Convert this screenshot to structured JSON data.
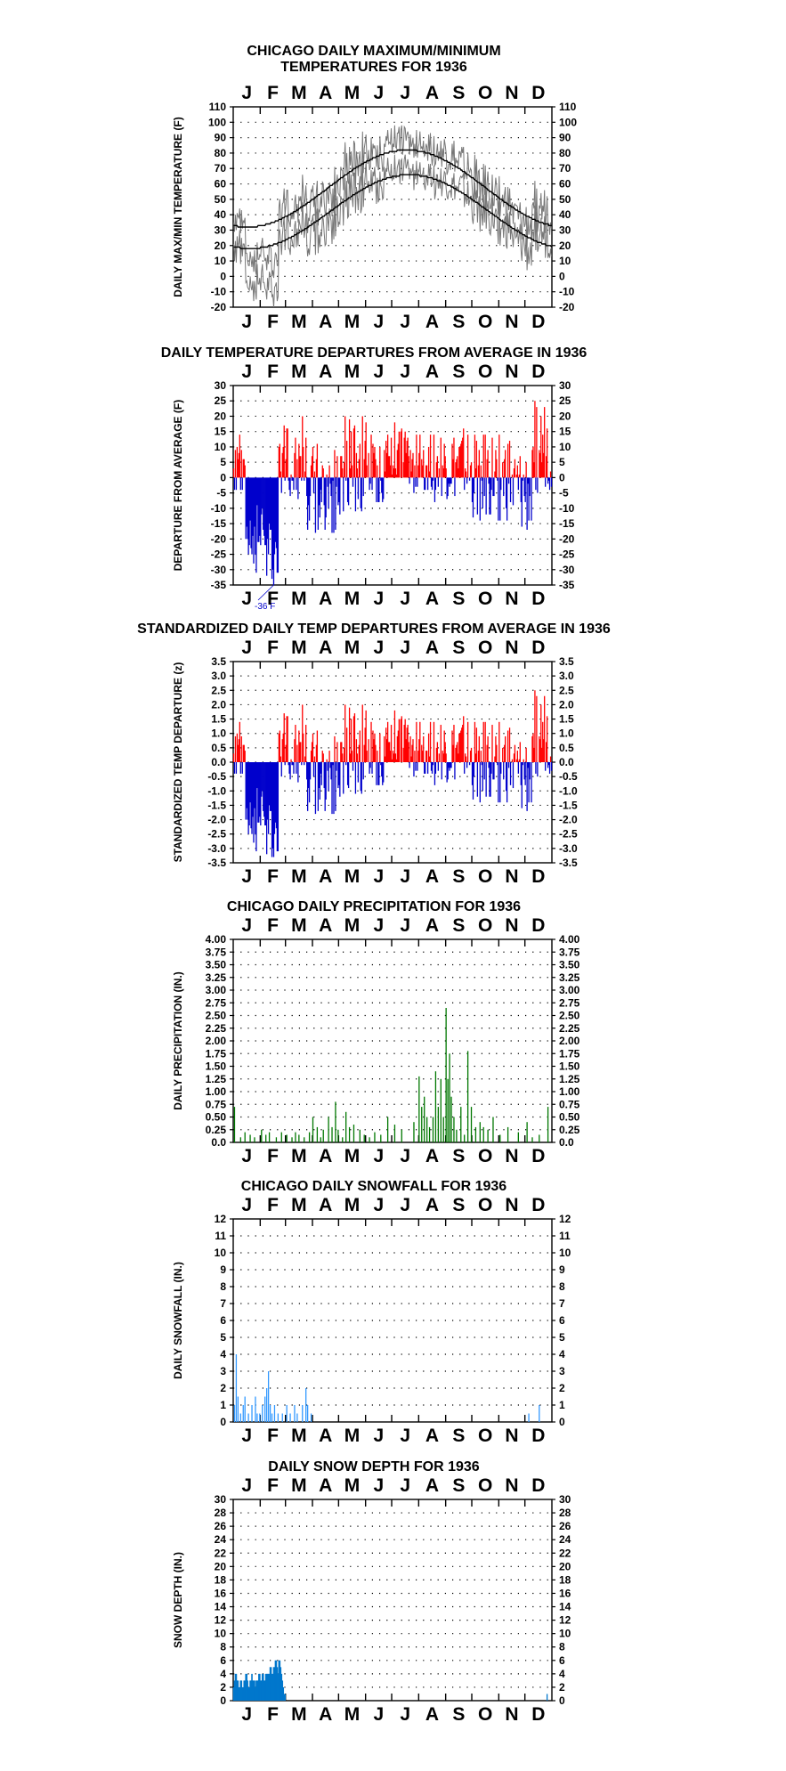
{
  "months": [
    "J",
    "F",
    "M",
    "A",
    "M",
    "J",
    "J",
    "A",
    "S",
    "O",
    "N",
    "D"
  ],
  "colors": {
    "frame": "#000000",
    "grid": "#000000",
    "temp_series": "#777777",
    "normal_lines": "#000000",
    "above_average": "#ff0000",
    "below_average": "#0000cc",
    "precipitation": "#007700",
    "snowfall": "#3399ff",
    "snow_depth": "#0077cc"
  },
  "chart_data": [
    {
      "id": "temp",
      "type": "line",
      "title": "CHICAGO DAILY MAXIMUM/MINIMUM",
      "subtitle": "TEMPERATURES FOR 1936",
      "ylabel": "DAILY MAX/MIN TEMPERATURE (F)",
      "ylim": [
        -20,
        110
      ],
      "yticks": [
        "110",
        "100",
        "90",
        "80",
        "70",
        "60",
        "50",
        "40",
        "30",
        "20",
        "10",
        "0",
        "-10",
        "-20"
      ],
      "grid": true,
      "x_units": "day of year 1936",
      "series": []
    },
    {
      "id": "departure",
      "type": "bar",
      "title": "DAILY TEMPERATURE DEPARTURES FROM AVERAGE IN 1936",
      "ylabel": "DEPARTURE FROM AVERAGE (F)",
      "ylim": [
        -35,
        30
      ],
      "yticks": [
        "30",
        "25",
        "20",
        "15",
        "10",
        "5",
        "0",
        "-5",
        "-10",
        "-15",
        "-20",
        "-25",
        "-30",
        "-35"
      ],
      "annotation": "-36 F",
      "grid": true,
      "x_units": "day of year 1936",
      "values": []
    },
    {
      "id": "standardized",
      "type": "bar",
      "title": "STANDARDIZED DAILY TEMP DEPARTURES FROM AVERAGE IN 1936",
      "ylabel": "STANDARDIZED TEMP DEPARTURE (z)",
      "ylim": [
        -3.5,
        3.5
      ],
      "yticks_left": [
        "3.5",
        "3.0",
        "2.5",
        "2.0",
        "1.5",
        "1.0",
        "0.5",
        "0.0",
        "-0.5",
        "-1.0",
        "-1.5",
        "-2.0",
        "-2.5",
        "-3.0",
        "-3.5"
      ],
      "yticks_right": [
        "3.5",
        "3.0",
        "2.5",
        "2.0",
        "1.5",
        "1.0",
        "0.5",
        "0.0",
        "-0.5",
        "-1.0",
        "-1.5",
        "-2.0",
        "-2.5",
        "-3.0",
        "-3.5"
      ],
      "grid": true,
      "x_units": "day of year 1936",
      "values": []
    },
    {
      "id": "precip",
      "type": "bar",
      "title": "CHICAGO DAILY PRECIPITATION FOR 1936",
      "ylabel": "DAILY PRECIPITATION (IN.)",
      "ylim": [
        0,
        4
      ],
      "yticks": [
        "4.00",
        "3.75",
        "3.50",
        "3.25",
        "3.00",
        "2.75",
        "2.50",
        "2.25",
        "2.00",
        "1.75",
        "1.50",
        "1.25",
        "1.00",
        "0.75",
        "0.50",
        "0.25",
        "0.0"
      ],
      "grid": true,
      "x_units": "day of year 1936",
      "points": [
        [
          2,
          0.7
        ],
        [
          9,
          0.1
        ],
        [
          14,
          0.2
        ],
        [
          20,
          0.15
        ],
        [
          25,
          0.1
        ],
        [
          33,
          0.25
        ],
        [
          38,
          0.15
        ],
        [
          42,
          0.2
        ],
        [
          50,
          0.1
        ],
        [
          56,
          0.2
        ],
        [
          62,
          0.15
        ],
        [
          68,
          0.1
        ],
        [
          72,
          0.2
        ],
        [
          76,
          0.15
        ],
        [
          82,
          0.1
        ],
        [
          88,
          0.2
        ],
        [
          92,
          0.5
        ],
        [
          97,
          0.3
        ],
        [
          101,
          0.1
        ],
        [
          104,
          0.25
        ],
        [
          110,
          0.5
        ],
        [
          114,
          0.3
        ],
        [
          118,
          0.8
        ],
        [
          121,
          0.25
        ],
        [
          126,
          0.1
        ],
        [
          130,
          0.6
        ],
        [
          134,
          0.3
        ],
        [
          139,
          0.35
        ],
        [
          146,
          0.25
        ],
        [
          151,
          0.15
        ],
        [
          157,
          0.1
        ],
        [
          163,
          0.2
        ],
        [
          170,
          0.15
        ],
        [
          178,
          0.5
        ],
        [
          186,
          0.35
        ],
        [
          194,
          0.25
        ],
        [
          208,
          0.4
        ],
        [
          214,
          1.3
        ],
        [
          217,
          0.7
        ],
        [
          220,
          0.9
        ],
        [
          223,
          0.5
        ],
        [
          226,
          0.3
        ],
        [
          230,
          0.5
        ],
        [
          233,
          1.4
        ],
        [
          236,
          0.7
        ],
        [
          239,
          1.25
        ],
        [
          242,
          0.5
        ],
        [
          245,
          2.65
        ],
        [
          247,
          1.25
        ],
        [
          249,
          1.75
        ],
        [
          251,
          0.9
        ],
        [
          254,
          0.5
        ],
        [
          257,
          0.25
        ],
        [
          262,
          0.7
        ],
        [
          266,
          0.15
        ],
        [
          270,
          1.8
        ],
        [
          274,
          0.7
        ],
        [
          279,
          0.3
        ],
        [
          284,
          0.4
        ],
        [
          288,
          0.3
        ],
        [
          293,
          0.25
        ],
        [
          299,
          0.5
        ],
        [
          307,
          0.15
        ],
        [
          316,
          0.3
        ],
        [
          328,
          0.2
        ],
        [
          338,
          0.4
        ],
        [
          344,
          0.1
        ],
        [
          352,
          0.15
        ],
        [
          362,
          0.7
        ]
      ]
    },
    {
      "id": "snowfall",
      "type": "bar",
      "title": "CHICAGO DAILY SNOWFALL FOR 1936",
      "ylabel": "DAILY SNOWFALL (IN.)",
      "ylim": [
        0,
        12
      ],
      "yticks": [
        "12",
        "11",
        "10",
        "9",
        "8",
        "7",
        "6",
        "5",
        "4",
        "3",
        "2",
        "1",
        "0"
      ],
      "grid": true,
      "x_units": "day of year 1936",
      "points": [
        [
          2,
          1.0
        ],
        [
          4,
          4.0
        ],
        [
          6,
          1.5
        ],
        [
          9,
          0.5
        ],
        [
          12,
          1.0
        ],
        [
          14,
          1.5
        ],
        [
          18,
          0.5
        ],
        [
          22,
          1.0
        ],
        [
          26,
          1.5
        ],
        [
          28,
          0.5
        ],
        [
          31,
          0.5
        ],
        [
          34,
          1.0
        ],
        [
          37,
          1.5
        ],
        [
          39,
          2.0
        ],
        [
          41,
          3.0
        ],
        [
          43,
          1.0
        ],
        [
          45,
          0.5
        ],
        [
          48,
          1.0
        ],
        [
          52,
          0.5
        ],
        [
          57,
          0.5
        ],
        [
          62,
          1.0
        ],
        [
          66,
          0.5
        ],
        [
          71,
          1.0
        ],
        [
          74,
          0.5
        ],
        [
          80,
          1.0
        ],
        [
          84,
          2.0
        ],
        [
          86,
          1.0
        ],
        [
          90,
          0.5
        ],
        [
          340,
          0.5
        ],
        [
          352,
          1.0
        ]
      ]
    },
    {
      "id": "snowdepth",
      "type": "bar",
      "title": "DAILY SNOW DEPTH FOR 1936",
      "ylabel": "SNOW DEPTH (IN.)",
      "ylim": [
        0,
        30
      ],
      "yticks_left": [
        "30",
        "28",
        "26",
        "24",
        "22",
        "20",
        "18",
        "16",
        "14",
        "12",
        "10",
        "8",
        "6",
        "4",
        "2",
        "0"
      ],
      "yticks_right": [
        "30",
        "28",
        "26",
        "24",
        "22",
        "20",
        "18",
        "16",
        "14",
        "12",
        "10",
        "8",
        "6",
        "4",
        "2",
        "0"
      ],
      "grid": true,
      "x_units": "day of year 1936",
      "values_jan_feb": [
        2,
        3,
        4,
        4,
        3,
        3,
        2,
        2,
        3,
        3,
        2,
        2,
        3,
        3,
        4,
        4,
        3,
        2,
        2,
        3,
        3,
        4,
        3,
        3,
        3,
        2,
        3,
        3,
        3,
        4,
        4,
        3,
        3,
        4,
        4,
        3,
        3,
        4,
        4,
        4,
        4,
        4,
        5,
        5,
        4,
        4,
        5,
        5,
        6,
        6,
        5,
        4,
        6,
        6,
        5,
        4,
        3,
        2,
        1,
        1
      ],
      "late_december": [
        [
          361,
          1
        ]
      ]
    }
  ]
}
